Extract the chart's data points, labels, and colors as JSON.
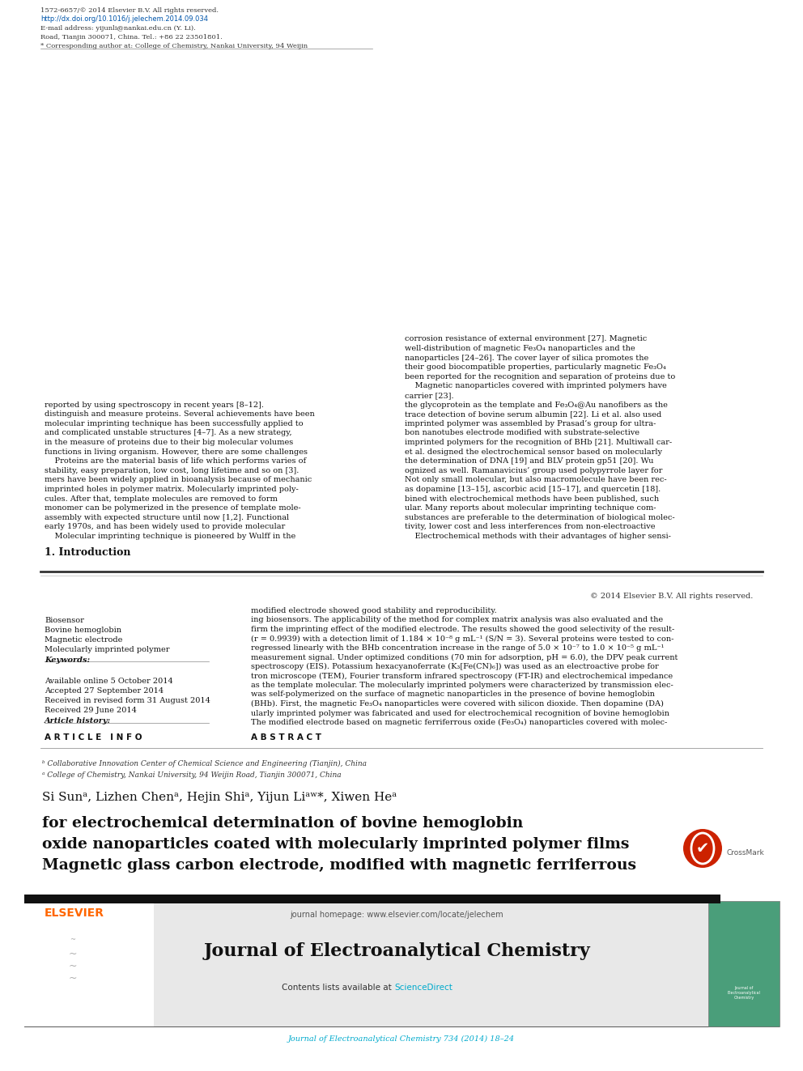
{
  "page_width": 9.92,
  "page_height": 13.23,
  "background_color": "#ffffff",
  "top_citation": "Journal of Electroanalytical Chemistry 734 (2014) 18–24",
  "top_citation_color": "#00aacc",
  "journal_header_bg": "#e8e8e8",
  "journal_name": "Journal of Electroanalytical Chemistry",
  "contents_text": "Contents lists available at ",
  "science_direct": "ScienceDirect",
  "science_direct_color": "#00aacc",
  "homepage_text": "journal homepage: www.elsevier.com/locate/jelechem",
  "homepage_color": "#555555",
  "elsevier_color": "#ff6600",
  "title_line1": "Magnetic glass carbon electrode, modified with magnetic ferriferrous",
  "title_line2": "oxide nanoparticles coated with molecularly imprinted polymer films",
  "title_line3": "for electrochemical determination of bovine hemoglobin",
  "authors": "Si Sunᵃ, Lizhen Chenᵃ, Hejin Shiᵃ, Yijun Liᵃʷ*, Xiwen Heᵃ",
  "affil1": "ᵃ College of Chemistry, Nankai University, 94 Weijin Road, Tianjin 300071, China",
  "affil2": "ᵇ Collaborative Innovation Center of Chemical Science and Engineering (Tianjin), China",
  "article_info_header": "A R T I C L E   I N F O",
  "article_history_label": "Article history:",
  "history_lines": [
    "Received 29 June 2014",
    "Received in revised form 31 August 2014",
    "Accepted 27 September 2014",
    "Available online 5 October 2014"
  ],
  "keywords_label": "Keywords:",
  "keywords": [
    "Molecularly imprinted polymer",
    "Magnetic electrode",
    "Bovine hemoglobin",
    "Biosensor"
  ],
  "abstract_header": "A B S T R A C T",
  "abstract_lines": [
    "The modified electrode based on magnetic ferriferrous oxide (Fe₃O₄) nanoparticles covered with molec-",
    "ularly imprinted polymer was fabricated and used for electrochemical recognition of bovine hemoglobin",
    "(BHb). First, the magnetic Fe₃O₄ nanoparticles were covered with silicon dioxide. Then dopamine (DA)",
    "was self-polymerized on the surface of magnetic nanoparticles in the presence of bovine hemoglobin",
    "as the template molecular. The molecularly imprinted polymers were characterized by transmission elec-",
    "tron microscope (TEM), Fourier transform infrared spectroscopy (FT-IR) and electrochemical impedance",
    "spectroscopy (EIS). Potassium hexacyanoferrate (K₃[Fe(CN)₆]) was used as an electroactive probe for",
    "measurement signal. Under optimized conditions (70 min for adsorption, pH = 6.0), the DPV peak current",
    "regressed linearly with the BHb concentration increase in the range of 5.0 × 10⁻⁷ to 1.0 × 10⁻⁵ g mL⁻¹",
    "(r = 0.9939) with a detection limit of 1.184 × 10⁻⁸ g mL⁻¹ (S/N = 3). Several proteins were tested to con-",
    "firm the imprinting effect of the modified electrode. The results showed the good selectivity of the result-",
    "ing biosensors. The applicability of the method for complex matrix analysis was also evaluated and the",
    "modified electrode showed good stability and reproducibility."
  ],
  "copyright_text": "© 2014 Elsevier B.V. All rights reserved.",
  "intro_header": "1. Introduction",
  "intro1_lines": [
    "    Molecular imprinting technique is pioneered by Wulff in the",
    "early 1970s, and has been widely used to provide molecular",
    "assembly with expected structure until now [1,2]. Functional",
    "monomer can be polymerized in the presence of template mole-",
    "cules. After that, template molecules are removed to form",
    "imprinted holes in polymer matrix. Molecularly imprinted poly-",
    "mers have been widely applied in bioanalysis because of mechanic",
    "stability, easy preparation, low cost, long lifetime and so on [3].",
    "    Proteins are the material basis of life which performs varies of",
    "functions in living organism. However, there are some challenges",
    "in the measure of proteins due to their big molecular volumes",
    "and complicated unstable structures [4–7]. As a new strategy,",
    "molecular imprinting technique has been successfully applied to",
    "distinguish and measure proteins. Several achievements have been",
    "reported by using spectroscopy in recent years [8–12]."
  ],
  "intro2_lines": [
    "    Electrochemical methods with their advantages of higher sensi-",
    "tivity, lower cost and less interferences from non-electroactive",
    "substances are preferable to the determination of biological molec-",
    "ular. Many reports about molecular imprinting technique com-",
    "bined with electrochemical methods have been published, such",
    "as dopamine [13–15], ascorbic acid [15–17], and quercetin [18].",
    "Not only small molecular, but also macromolecule have been rec-",
    "ognized as well. Ramanavicius’ group used polypyrrole layer for",
    "the determination of DNA [19] and BLV protein gp51 [20]. Wu",
    "et al. designed the electrochemical sensor based on molecularly",
    "imprinted polymers for the recognition of BHb [21]. Multiwall car-",
    "bon nanotubes electrode modified with substrate-selective",
    "imprinted polymer was assembled by Prasad’s group for ultra-",
    "trace detection of bovine serum albumin [22]. Li et al. also used",
    "the glycoprotein as the template and Fe₃O₄@Au nanofibers as the",
    "carrier [23].",
    "    Magnetic nanoparticles covered with imprinted polymers have",
    "been reported for the recognition and separation of proteins due to",
    "their good biocompatible properties, particularly magnetic Fe₃O₄",
    "nanoparticles [24–26]. The cover layer of silica promotes the",
    "well-distribution of magnetic Fe₃O₄ nanoparticles and the",
    "corrosion resistance of external environment [27]. Magnetic"
  ],
  "footer_corr": "* Corresponding author at: College of Chemistry, Nankai University, 94 Weijin",
  "footer_corr2": "Road, Tianjin 300071, China. Tel.: +86 22 23501801.",
  "footer_email": "E-mail address: yijunli@nankai.edu.cn (Y. Li).",
  "footer_url": "http://dx.doi.org/10.1016/j.jelechem.2014.09.034",
  "footer_issn": "1572-6657/© 2014 Elsevier B.V. All rights reserved."
}
